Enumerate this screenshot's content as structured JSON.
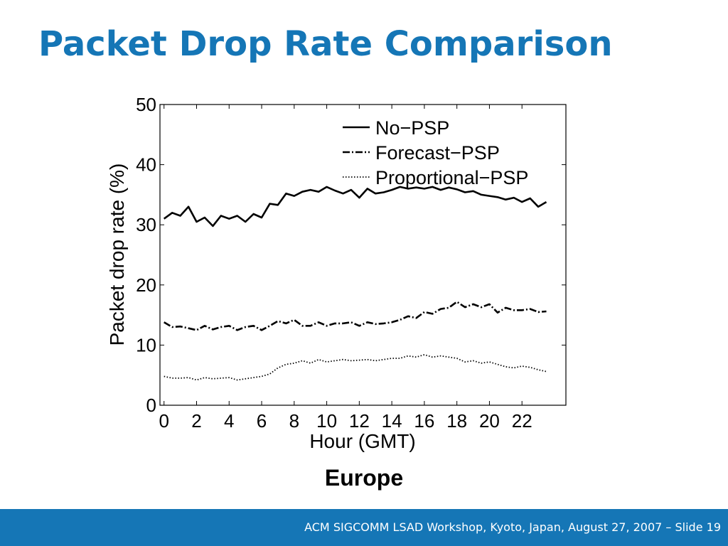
{
  "slide": {
    "title": "Packet Drop Rate Comparison",
    "caption": "Europe",
    "footer": "ACM SIGCOMM LSAD Workshop, Kyoto, Japan, August 27, 2007 – Slide 19"
  },
  "colors": {
    "title": "#1576b6",
    "footer_bg": "#1576b6",
    "series": "#000000"
  },
  "chart_data": {
    "type": "line",
    "xlabel": "Hour (GMT)",
    "ylabel": "Packet drop rate (%)",
    "xlim": [
      -0.25,
      24.7
    ],
    "ylim": [
      0,
      50
    ],
    "xticks": [
      0,
      2,
      4,
      6,
      8,
      10,
      12,
      14,
      16,
      18,
      20,
      22
    ],
    "yticks": [
      0,
      10,
      20,
      30,
      40,
      50
    ],
    "grid": false,
    "legend_position": "top-right",
    "x": [
      0,
      0.5,
      1,
      1.5,
      2,
      2.5,
      3,
      3.5,
      4,
      4.5,
      5,
      5.5,
      6,
      6.5,
      7,
      7.5,
      8,
      8.5,
      9,
      9.5,
      10,
      10.5,
      11,
      11.5,
      12,
      12.5,
      13,
      13.5,
      14,
      14.5,
      15,
      15.5,
      16,
      16.5,
      17,
      17.5,
      18,
      18.5,
      19,
      19.5,
      20,
      20.5,
      21,
      21.5,
      22,
      22.5,
      23,
      23.5
    ],
    "series": [
      {
        "name": "No−PSP",
        "style": "solid",
        "values": [
          31.0,
          32.0,
          31.5,
          33.0,
          30.5,
          31.2,
          29.8,
          31.5,
          31.0,
          31.5,
          30.5,
          31.8,
          31.2,
          33.5,
          33.3,
          35.2,
          34.8,
          35.5,
          35.8,
          35.5,
          36.3,
          35.7,
          35.2,
          35.8,
          34.5,
          36.0,
          35.2,
          35.4,
          35.8,
          36.3,
          36.0,
          36.2,
          36.0,
          36.3,
          35.8,
          36.2,
          35.9,
          35.4,
          35.6,
          35.0,
          34.8,
          34.6,
          34.2,
          34.5,
          33.8,
          34.4,
          33.0,
          33.8
        ]
      },
      {
        "name": "Forecast−PSP",
        "style": "dashdot",
        "values": [
          13.8,
          13.0,
          13.1,
          12.8,
          12.5,
          13.2,
          12.6,
          13.0,
          13.2,
          12.5,
          13.0,
          13.2,
          12.5,
          13.2,
          14.0,
          13.6,
          14.2,
          13.2,
          13.2,
          13.8,
          13.2,
          13.6,
          13.6,
          13.8,
          13.2,
          13.8,
          13.5,
          13.6,
          13.8,
          14.2,
          14.8,
          14.5,
          15.5,
          15.2,
          16.0,
          16.2,
          17.2,
          16.3,
          16.8,
          16.3,
          16.8,
          15.4,
          16.2,
          15.8,
          15.8,
          16.0,
          15.5,
          15.6
        ]
      },
      {
        "name": "Proportional−PSP",
        "style": "dotted",
        "values": [
          4.8,
          4.5,
          4.5,
          4.6,
          4.2,
          4.6,
          4.4,
          4.5,
          4.6,
          4.2,
          4.4,
          4.6,
          4.8,
          5.2,
          6.2,
          6.8,
          7.0,
          7.4,
          7.0,
          7.6,
          7.2,
          7.4,
          7.6,
          7.4,
          7.5,
          7.6,
          7.4,
          7.6,
          7.8,
          7.8,
          8.2,
          8.0,
          8.4,
          8.0,
          8.2,
          8.0,
          7.8,
          7.2,
          7.4,
          7.0,
          7.2,
          6.8,
          6.4,
          6.2,
          6.5,
          6.3,
          5.9,
          5.6
        ]
      }
    ]
  }
}
